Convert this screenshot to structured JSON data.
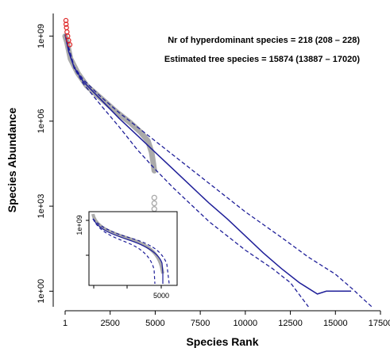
{
  "chart_data": {
    "type": "line",
    "xlabel": "Species Rank",
    "ylabel": "Species Abundance",
    "xlim": [
      1,
      17500
    ],
    "ylim_log10": [
      -0.55,
      9.8
    ],
    "y_scale": "log",
    "grid": false,
    "x_ticks": [
      {
        "value": 1,
        "label": "1"
      },
      {
        "value": 2500,
        "label": "2500"
      },
      {
        "value": 5000,
        "label": "5000"
      },
      {
        "value": 7500,
        "label": "7500"
      },
      {
        "value": 10000,
        "label": "10000"
      },
      {
        "value": 12500,
        "label": "12500"
      },
      {
        "value": 15000,
        "label": "15000"
      },
      {
        "value": 17500,
        "label": "17500"
      }
    ],
    "y_ticks": [
      {
        "log10": 0,
        "label": "1e+00"
      },
      {
        "log10": 3,
        "label": "1e+03"
      },
      {
        "log10": 6,
        "label": "1e+06"
      },
      {
        "log10": 9,
        "label": "1e+09"
      }
    ],
    "annotations": [
      "Nr of hyperdominant species = 218 (208 – 228)",
      "Estimated tree species = 15874 (13887 – 17020)"
    ],
    "series": [
      {
        "role": "fit",
        "color": "#1f1f99",
        "dash": "solid",
        "points": [
          [
            1,
            9.06
          ],
          [
            200,
            8.45
          ],
          [
            500,
            7.9
          ],
          [
            1000,
            7.4
          ],
          [
            2000,
            6.75
          ],
          [
            3000,
            6.1
          ],
          [
            4000,
            5.5
          ],
          [
            5000,
            4.9
          ],
          [
            6000,
            4.3
          ],
          [
            7000,
            3.7
          ],
          [
            8000,
            3.1
          ],
          [
            9000,
            2.55
          ],
          [
            10000,
            1.95
          ],
          [
            11000,
            1.35
          ],
          [
            12000,
            0.8
          ],
          [
            13000,
            0.3
          ],
          [
            14000,
            -0.1
          ],
          [
            14500,
            0
          ],
          [
            15000,
            0
          ],
          [
            15874,
            0
          ]
        ]
      },
      {
        "role": "upper-ci",
        "color": "#1f1f99",
        "dash": "dashed",
        "points": [
          [
            1,
            9.06
          ],
          [
            500,
            7.93
          ],
          [
            1000,
            7.47
          ],
          [
            2000,
            6.85
          ],
          [
            3000,
            6.3
          ],
          [
            4000,
            5.8
          ],
          [
            6000,
            4.8
          ],
          [
            8000,
            3.8
          ],
          [
            10000,
            2.8
          ],
          [
            12000,
            1.9
          ],
          [
            13500,
            1.2
          ],
          [
            15000,
            0.6
          ],
          [
            16000,
            0.05
          ],
          [
            16500,
            -0.25
          ],
          [
            17020,
            -0.55
          ]
        ]
      },
      {
        "role": "lower-ci",
        "color": "#1f1f99",
        "dash": "dashed",
        "points": [
          [
            1,
            9.06
          ],
          [
            500,
            7.87
          ],
          [
            1000,
            7.33
          ],
          [
            2000,
            6.55
          ],
          [
            3000,
            5.8
          ],
          [
            4000,
            5.0
          ],
          [
            5000,
            4.3
          ],
          [
            6000,
            3.65
          ],
          [
            8000,
            2.45
          ],
          [
            10000,
            1.45
          ],
          [
            11500,
            0.8
          ],
          [
            12500,
            0.3
          ],
          [
            13500,
            -0.55
          ]
        ]
      },
      {
        "role": "observed",
        "color": "#aaaaaa",
        "points": [
          [
            1,
            9.0
          ],
          [
            100,
            8.8
          ],
          [
            300,
            8.2
          ],
          [
            700,
            7.7
          ],
          [
            1200,
            7.25
          ],
          [
            2000,
            6.8
          ],
          [
            2800,
            6.35
          ],
          [
            3600,
            5.95
          ],
          [
            4200,
            5.6
          ],
          [
            4600,
            5.3
          ],
          [
            4800,
            4.9
          ],
          [
            4900,
            4.5
          ],
          [
            4950,
            4.25
          ]
        ],
        "outliers": [
          [
            4950,
            3.3
          ],
          [
            4950,
            3.1
          ],
          [
            4950,
            2.9
          ],
          [
            4950,
            2.7
          ]
        ]
      },
      {
        "role": "hyperdominant",
        "color": "#dd2222",
        "count": 218,
        "points": [
          [
            1,
            9.55
          ],
          [
            10,
            9.42
          ],
          [
            30,
            9.3
          ],
          [
            60,
            9.15
          ],
          [
            100,
            9.0
          ],
          [
            150,
            8.85
          ],
          [
            218,
            8.7
          ]
        ]
      }
    ],
    "inset": {
      "y_tick_label": "1e+09",
      "x_tick_label": "5000"
    }
  }
}
